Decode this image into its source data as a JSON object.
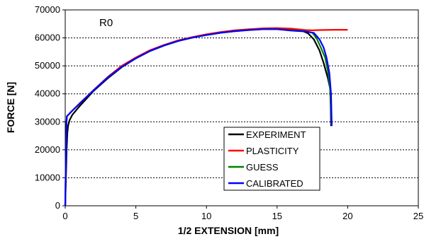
{
  "chart_data": {
    "type": "line",
    "annotation": "R0",
    "xlabel": "1/2 EXTENSION [mm]",
    "ylabel": "FORCE [N]",
    "xlim": [
      0,
      25
    ],
    "ylim": [
      0,
      70000
    ],
    "xticks": [
      0,
      5,
      10,
      15,
      20,
      25
    ],
    "yticks": [
      0,
      10000,
      20000,
      30000,
      40000,
      50000,
      60000,
      70000
    ],
    "grid": "horizontal-dashed",
    "legend_position": "center-bottom",
    "series": [
      {
        "name": "EXPERIMENT",
        "color": "#000000",
        "points": [
          [
            0,
            0
          ],
          [
            0.05,
            10000
          ],
          [
            0.1,
            20000
          ],
          [
            0.15,
            26000
          ],
          [
            0.2,
            28500
          ],
          [
            0.3,
            30500
          ],
          [
            0.5,
            32500
          ],
          [
            1,
            35500
          ],
          [
            2,
            41000
          ],
          [
            3,
            45500
          ],
          [
            4,
            49500
          ],
          [
            5,
            52700
          ],
          [
            6,
            55300
          ],
          [
            7,
            57300
          ],
          [
            8,
            58900
          ],
          [
            9,
            60100
          ],
          [
            10,
            61100
          ],
          [
            11,
            61900
          ],
          [
            12,
            62500
          ],
          [
            13,
            63000
          ],
          [
            14,
            63300
          ],
          [
            15,
            63400
          ],
          [
            16,
            63200
          ],
          [
            16.8,
            62500
          ],
          [
            17.2,
            61600
          ],
          [
            17.6,
            59500
          ],
          [
            18,
            55500
          ],
          [
            18.3,
            51000
          ],
          [
            18.6,
            45500
          ],
          [
            18.75,
            42000
          ],
          [
            18.8,
            35000
          ],
          [
            18.82,
            28500
          ]
        ]
      },
      {
        "name": "PLASTICITY",
        "color": "#ff0000",
        "points": [
          [
            0,
            0
          ],
          [
            0.03,
            10000
          ],
          [
            0.06,
            20000
          ],
          [
            0.09,
            30000
          ],
          [
            0.12,
            32000
          ],
          [
            0.5,
            34000
          ],
          [
            1,
            36500
          ],
          [
            2,
            41300
          ],
          [
            3,
            46000
          ],
          [
            4,
            50000
          ],
          [
            5,
            53000
          ],
          [
            6,
            55600
          ],
          [
            7,
            57500
          ],
          [
            8,
            59100
          ],
          [
            9,
            60300
          ],
          [
            10,
            61300
          ],
          [
            11,
            62100
          ],
          [
            12,
            62700
          ],
          [
            13,
            63100
          ],
          [
            14,
            63400
          ],
          [
            15,
            63500
          ],
          [
            16,
            63300
          ],
          [
            17,
            62800
          ],
          [
            17.5,
            62700
          ],
          [
            18,
            62800
          ],
          [
            19,
            62900
          ],
          [
            20,
            62900
          ]
        ]
      },
      {
        "name": "GUESS",
        "color": "#008000",
        "points": [
          [
            0,
            0
          ],
          [
            0.03,
            10000
          ],
          [
            0.06,
            20000
          ],
          [
            0.09,
            30000
          ],
          [
            0.12,
            32000
          ],
          [
            0.5,
            34000
          ],
          [
            1,
            36400
          ],
          [
            2,
            41200
          ],
          [
            3,
            45800
          ],
          [
            4,
            49600
          ],
          [
            5,
            52700
          ],
          [
            6,
            55300
          ],
          [
            7,
            57300
          ],
          [
            8,
            58900
          ],
          [
            9,
            60100
          ],
          [
            10,
            61000
          ],
          [
            11,
            61800
          ],
          [
            12,
            62400
          ],
          [
            13,
            62800
          ],
          [
            14,
            63100
          ],
          [
            15,
            63100
          ],
          [
            16,
            62700
          ],
          [
            17,
            62400
          ],
          [
            17.5,
            61800
          ],
          [
            17.8,
            59800
          ],
          [
            18.1,
            56500
          ],
          [
            18.4,
            53000
          ],
          [
            18.6,
            48000
          ],
          [
            18.75,
            42000
          ],
          [
            18.82,
            35000
          ],
          [
            18.85,
            29000
          ]
        ]
      },
      {
        "name": "CALIBRATED",
        "color": "#0000ff",
        "points": [
          [
            0,
            0
          ],
          [
            0.03,
            10000
          ],
          [
            0.06,
            20000
          ],
          [
            0.09,
            30000
          ],
          [
            0.12,
            32000
          ],
          [
            0.5,
            34000
          ],
          [
            1,
            36400
          ],
          [
            2,
            41200
          ],
          [
            3,
            45800
          ],
          [
            4,
            49600
          ],
          [
            5,
            52700
          ],
          [
            6,
            55300
          ],
          [
            7,
            57300
          ],
          [
            8,
            58900
          ],
          [
            9,
            60100
          ],
          [
            10,
            61000
          ],
          [
            11,
            61800
          ],
          [
            12,
            62400
          ],
          [
            13,
            62800
          ],
          [
            14,
            63100
          ],
          [
            15,
            63100
          ],
          [
            16,
            62600
          ],
          [
            17,
            62300
          ],
          [
            17.6,
            61800
          ],
          [
            18,
            59500
          ],
          [
            18.3,
            56500
          ],
          [
            18.5,
            53000
          ],
          [
            18.7,
            47500
          ],
          [
            18.82,
            40000
          ],
          [
            18.85,
            33000
          ],
          [
            18.87,
            28500
          ]
        ]
      }
    ]
  }
}
